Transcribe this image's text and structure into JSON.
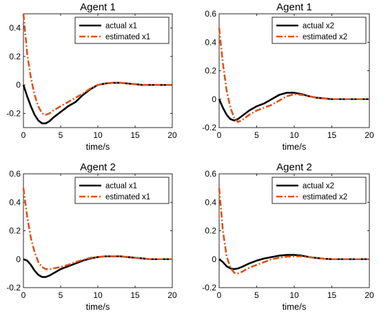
{
  "chart_data": [
    {
      "type": "line",
      "title": "Agent 1",
      "xlabel": "time/s",
      "ylabel": "",
      "xlim": [
        0,
        20
      ],
      "ylim": [
        -0.3,
        0.5
      ],
      "xticks": [
        "0",
        "5",
        "10",
        "15",
        "20"
      ],
      "yticks": [
        "-0.2",
        "0",
        "0.2",
        "0.4"
      ],
      "ytick_values": [
        -0.2,
        0,
        0.2,
        0.4
      ],
      "grid": false,
      "legend_position": "top-right",
      "series": [
        {
          "name": "actual x1",
          "color": "#000000",
          "style": "solid",
          "x": [
            0,
            0.5,
            1,
            1.5,
            2,
            2.5,
            3,
            3.5,
            4,
            5,
            6,
            7,
            8,
            9,
            10,
            11,
            12,
            13,
            14,
            15,
            16,
            17,
            18,
            19,
            20
          ],
          "y": [
            0,
            -0.08,
            -0.15,
            -0.21,
            -0.25,
            -0.27,
            -0.27,
            -0.255,
            -0.23,
            -0.19,
            -0.15,
            -0.12,
            -0.07,
            -0.03,
            0.0,
            0.01,
            0.015,
            0.015,
            0.01,
            0.005,
            0.0,
            0.0,
            0.0,
            0.0,
            0.0
          ]
        },
        {
          "name": "estimated x1",
          "color": "#D95319",
          "style": "dashdot",
          "x": [
            0,
            0.5,
            1,
            1.5,
            2,
            2.5,
            3,
            3.5,
            4,
            5,
            6,
            7,
            8,
            9,
            10,
            11,
            12,
            13,
            14,
            15,
            16,
            17,
            18,
            19,
            20
          ],
          "y": [
            0.5,
            0.22,
            0.05,
            -0.07,
            -0.15,
            -0.2,
            -0.21,
            -0.2,
            -0.18,
            -0.15,
            -0.12,
            -0.09,
            -0.06,
            -0.025,
            0.0,
            0.01,
            0.015,
            0.015,
            0.01,
            0.005,
            0.0,
            0.0,
            0.0,
            0.0,
            0.0
          ]
        }
      ]
    },
    {
      "type": "line",
      "title": "Agent 1",
      "xlabel": "time/s",
      "ylabel": "",
      "xlim": [
        0,
        20
      ],
      "ylim": [
        -0.2,
        0.6
      ],
      "xticks": [
        "0",
        "5",
        "10",
        "15",
        "20"
      ],
      "yticks": [
        "-0.2",
        "0",
        "0.2",
        "0.4",
        "0.6"
      ],
      "ytick_values": [
        -0.2,
        0,
        0.2,
        0.4,
        0.6
      ],
      "grid": false,
      "legend_position": "top-right",
      "series": [
        {
          "name": "actual x2",
          "color": "#000000",
          "style": "solid",
          "x": [
            0,
            0.5,
            1,
            1.5,
            2,
            2.5,
            3,
            4,
            5,
            6,
            7,
            8,
            9,
            10,
            11,
            12,
            13,
            14,
            15,
            16,
            17,
            18,
            19,
            20
          ],
          "y": [
            0,
            -0.06,
            -0.11,
            -0.14,
            -0.15,
            -0.14,
            -0.12,
            -0.08,
            -0.05,
            -0.03,
            0.0,
            0.03,
            0.045,
            0.045,
            0.035,
            0.02,
            0.01,
            0.005,
            0.0,
            0.0,
            0.0,
            0.0,
            0.0,
            0.0
          ]
        },
        {
          "name": "estimated x2",
          "color": "#D95319",
          "style": "dashdot",
          "x": [
            0,
            0.5,
            1,
            1.5,
            2,
            2.5,
            3,
            4,
            5,
            6,
            7,
            8,
            9,
            10,
            11,
            12,
            13,
            14,
            15,
            16,
            17,
            18,
            19,
            20
          ],
          "y": [
            0.5,
            0.25,
            0.06,
            -0.06,
            -0.13,
            -0.16,
            -0.15,
            -0.11,
            -0.08,
            -0.06,
            -0.04,
            -0.01,
            0.02,
            0.035,
            0.03,
            0.02,
            0.01,
            0.005,
            0.0,
            0.0,
            0.0,
            0.0,
            0.0,
            0.0
          ]
        }
      ]
    },
    {
      "type": "line",
      "title": "Agent 2",
      "xlabel": "time/s",
      "ylabel": "",
      "xlim": [
        0,
        20
      ],
      "ylim": [
        -0.2,
        0.6
      ],
      "xticks": [
        "0",
        "5",
        "10",
        "15",
        "20"
      ],
      "yticks": [
        "-0.2",
        "0",
        "0.2",
        "0.4",
        "0.6"
      ],
      "ytick_values": [
        -0.2,
        0,
        0.2,
        0.4,
        0.6
      ],
      "grid": false,
      "legend_position": "top-right",
      "series": [
        {
          "name": "actual x1",
          "color": "#000000",
          "style": "solid",
          "x": [
            0,
            0.5,
            1,
            1.5,
            2,
            2.5,
            3,
            3.5,
            4,
            5,
            6,
            7,
            8,
            9,
            10,
            11,
            12,
            13,
            14,
            15,
            16,
            17,
            18,
            19,
            20
          ],
          "y": [
            0,
            -0.01,
            -0.04,
            -0.08,
            -0.11,
            -0.125,
            -0.125,
            -0.115,
            -0.1,
            -0.07,
            -0.05,
            -0.03,
            -0.01,
            0.005,
            0.015,
            0.02,
            0.02,
            0.02,
            0.015,
            0.01,
            0.005,
            0.0,
            0.0,
            0.0,
            0.0
          ]
        },
        {
          "name": "estimated x1",
          "color": "#D95319",
          "style": "dashdot",
          "x": [
            0,
            0.5,
            1,
            1.5,
            2,
            2.5,
            3,
            3.5,
            4,
            5,
            6,
            7,
            8,
            9,
            10,
            11,
            12,
            13,
            14,
            15,
            16,
            17,
            18,
            19,
            20
          ],
          "y": [
            0.5,
            0.3,
            0.15,
            0.05,
            -0.02,
            -0.055,
            -0.07,
            -0.07,
            -0.065,
            -0.055,
            -0.04,
            -0.02,
            -0.005,
            0.01,
            0.015,
            0.02,
            0.02,
            0.02,
            0.015,
            0.01,
            0.005,
            0.0,
            0.0,
            0.0,
            0.0
          ]
        }
      ]
    },
    {
      "type": "line",
      "title": "Agent 2",
      "xlabel": "time/s",
      "ylabel": "",
      "xlim": [
        0,
        20
      ],
      "ylim": [
        -0.2,
        0.6
      ],
      "xticks": [
        "0",
        "5",
        "10",
        "15",
        "20"
      ],
      "yticks": [
        "-0.2",
        "0",
        "0.2",
        "0.4",
        "0.6"
      ],
      "ytick_values": [
        -0.2,
        0,
        0.2,
        0.4,
        0.6
      ],
      "grid": false,
      "legend_position": "top-right",
      "series": [
        {
          "name": "actual x2",
          "color": "#000000",
          "style": "solid",
          "x": [
            0,
            0.5,
            1,
            1.5,
            2,
            2.5,
            3,
            4,
            5,
            6,
            7,
            8,
            9,
            10,
            11,
            12,
            13,
            14,
            15,
            16,
            17,
            18,
            19,
            20
          ],
          "y": [
            0,
            -0.02,
            -0.05,
            -0.065,
            -0.07,
            -0.065,
            -0.055,
            -0.03,
            -0.01,
            0.005,
            0.015,
            0.025,
            0.03,
            0.03,
            0.025,
            0.015,
            0.008,
            0.003,
            0.0,
            0.0,
            0.0,
            0.0,
            0.0,
            0.0
          ]
        },
        {
          "name": "estimated x2",
          "color": "#D95319",
          "style": "dashdot",
          "x": [
            0,
            0.5,
            1,
            1.5,
            2,
            2.5,
            3,
            4,
            5,
            6,
            7,
            8,
            9,
            10,
            11,
            12,
            13,
            14,
            15,
            16,
            17,
            18,
            19,
            20
          ],
          "y": [
            0.5,
            0.2,
            0.02,
            -0.06,
            -0.095,
            -0.1,
            -0.09,
            -0.06,
            -0.04,
            -0.02,
            0.0,
            0.01,
            0.018,
            0.02,
            0.02,
            0.015,
            0.008,
            0.003,
            0.0,
            0.0,
            0.0,
            0.0,
            0.0,
            0.0
          ]
        }
      ]
    }
  ]
}
